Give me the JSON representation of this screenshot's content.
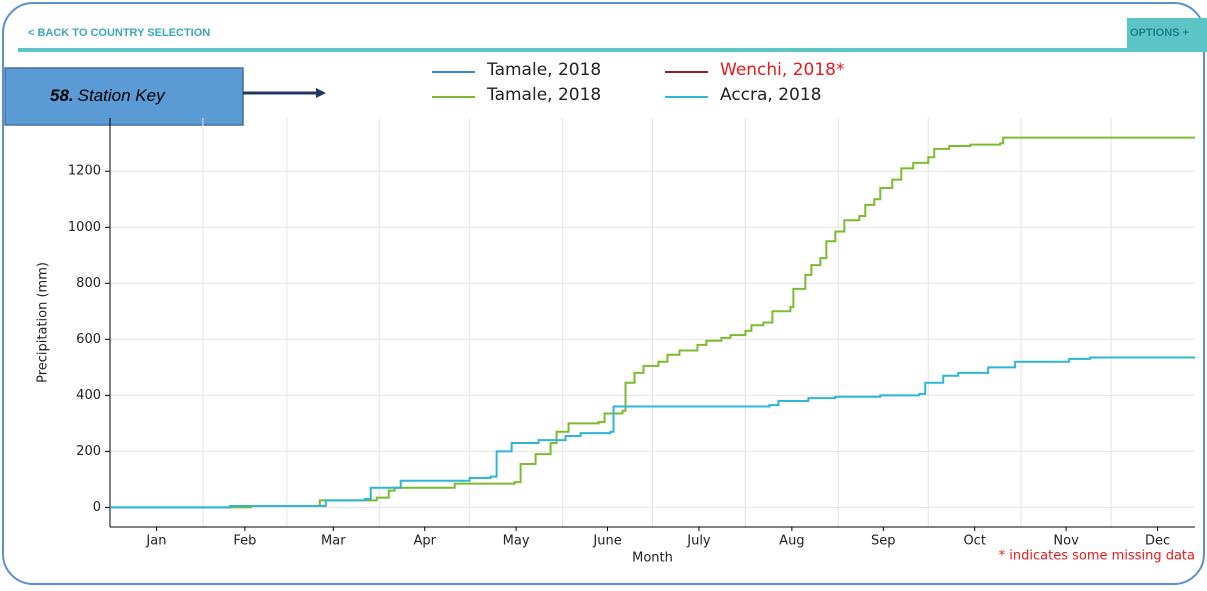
{
  "header": {
    "back_link": "< BACK TO COUNTRY SELECTION",
    "options": "OPTIONS +"
  },
  "annotation": {
    "number": "58.",
    "label": "Station Key"
  },
  "chart_data": {
    "type": "line",
    "xlabel": "Month",
    "ylabel": "Precipitation (mm)",
    "note": "* indicates some missing data",
    "xlim": [
      0,
      362
    ],
    "ylim": [
      -70,
      1390
    ],
    "xticks": [
      {
        "value": 15.5,
        "label": "Jan"
      },
      {
        "value": 45,
        "label": "Feb"
      },
      {
        "value": 74.5,
        "label": "Mar"
      },
      {
        "value": 105,
        "label": "Apr"
      },
      {
        "value": 135.5,
        "label": "May"
      },
      {
        "value": 166,
        "label": "June"
      },
      {
        "value": 196.5,
        "label": "July"
      },
      {
        "value": 227.5,
        "label": "Aug"
      },
      {
        "value": 258,
        "label": "Sep"
      },
      {
        "value": 288.5,
        "label": "Oct"
      },
      {
        "value": 319,
        "label": "Nov"
      },
      {
        "value": 349.5,
        "label": "Dec"
      }
    ],
    "x_gridlines": [
      31,
      59,
      90,
      120,
      151,
      181,
      212,
      243,
      273,
      304,
      334
    ],
    "yticks": [
      0,
      200,
      400,
      600,
      800,
      1000,
      1200
    ],
    "grid": true,
    "series": [
      {
        "name": "Tamale, 2018",
        "color": "#3a86d4",
        "x": [],
        "values": []
      },
      {
        "name": "Wenchi, 2018*",
        "color": "#9b1c1c",
        "label_color": "#e8191a",
        "x": [],
        "values": []
      },
      {
        "name": "Tamale, 2018",
        "color": "#7cbb2f",
        "x": [
          0,
          47,
          47,
          70,
          70,
          89,
          89,
          93,
          93,
          95,
          95,
          115,
          115,
          135,
          135,
          137,
          137,
          142,
          142,
          147,
          147,
          149,
          149,
          153,
          153,
          163,
          163,
          165,
          165,
          171,
          171,
          172,
          172,
          175,
          175,
          178,
          178,
          183,
          183,
          186,
          186,
          190,
          190,
          196,
          196,
          199,
          199,
          204,
          204,
          207,
          207,
          212,
          212,
          214,
          214,
          218,
          218,
          221,
          221,
          227,
          227,
          228,
          228,
          232,
          232,
          234,
          234,
          237,
          237,
          239,
          239,
          242,
          242,
          245,
          245,
          250,
          250,
          252,
          252,
          255,
          255,
          257,
          257,
          261,
          261,
          264,
          264,
          268,
          268,
          273,
          273,
          275,
          275,
          280,
          280,
          287,
          287,
          297,
          297,
          298,
          298,
          362
        ],
        "values": [
          0,
          0,
          5,
          5,
          25,
          25,
          35,
          35,
          60,
          60,
          70,
          70,
          85,
          85,
          90,
          90,
          155,
          155,
          190,
          190,
          230,
          230,
          270,
          270,
          300,
          300,
          305,
          305,
          335,
          335,
          345,
          345,
          445,
          445,
          480,
          480,
          505,
          505,
          520,
          520,
          545,
          545,
          560,
          560,
          580,
          580,
          595,
          595,
          605,
          605,
          615,
          615,
          630,
          630,
          650,
          650,
          660,
          660,
          700,
          700,
          715,
          715,
          780,
          780,
          830,
          830,
          865,
          865,
          890,
          890,
          950,
          950,
          985,
          985,
          1025,
          1025,
          1040,
          1040,
          1080,
          1080,
          1100,
          1100,
          1140,
          1140,
          1170,
          1170,
          1210,
          1210,
          1230,
          1230,
          1250,
          1250,
          1280,
          1280,
          1290,
          1290,
          1295,
          1295,
          1300,
          1300,
          1320,
          1320
        ]
      },
      {
        "name": "Accra, 2018",
        "color": "#2fb5d6",
        "x": [
          0,
          40,
          40,
          72,
          72,
          85,
          85,
          87,
          87,
          97,
          97,
          120,
          120,
          127,
          127,
          129,
          129,
          134,
          134,
          143,
          143,
          152,
          152,
          157,
          157,
          167,
          167,
          168,
          168,
          220,
          220,
          223,
          223,
          233,
          233,
          242,
          242,
          257,
          257,
          270,
          270,
          272,
          272,
          278,
          278,
          283,
          283,
          293,
          293,
          302,
          302,
          320,
          320,
          327,
          327,
          362
        ],
        "values": [
          0,
          0,
          5,
          5,
          25,
          25,
          30,
          30,
          70,
          70,
          95,
          95,
          105,
          105,
          110,
          110,
          200,
          200,
          230,
          230,
          240,
          240,
          255,
          255,
          265,
          265,
          270,
          270,
          360,
          360,
          365,
          365,
          380,
          380,
          390,
          390,
          395,
          395,
          400,
          400,
          405,
          405,
          445,
          445,
          470,
          470,
          480,
          480,
          500,
          500,
          520,
          520,
          530,
          530,
          535,
          535
        ]
      }
    ]
  }
}
